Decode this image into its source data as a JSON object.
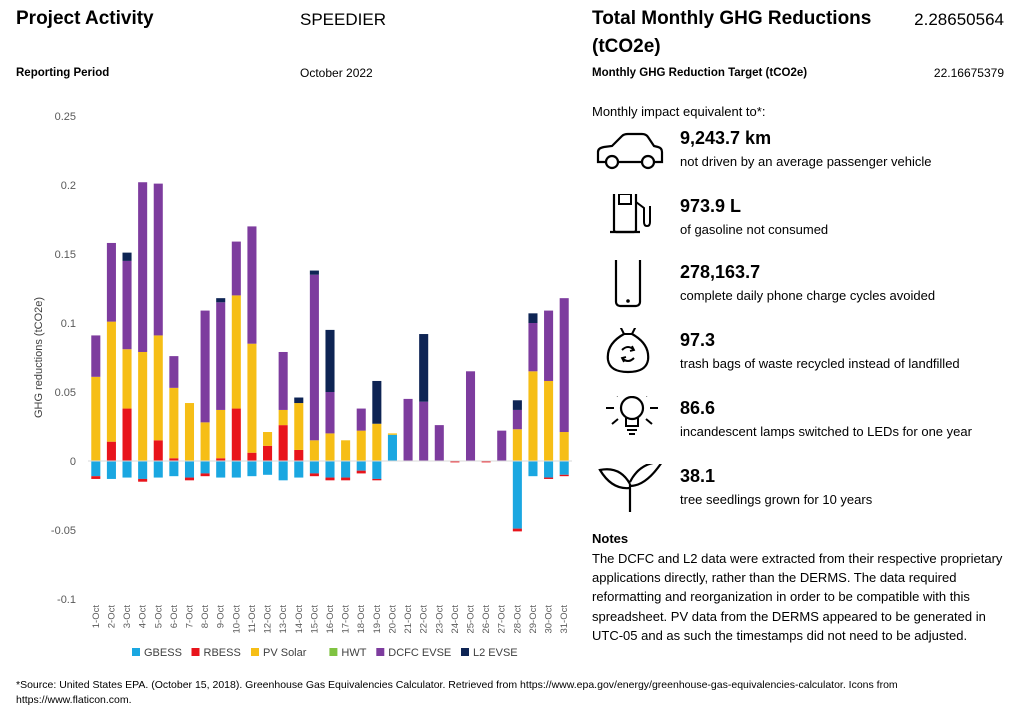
{
  "header": {
    "project_activity_label": "Project Activity",
    "project_name": "SPEEDIER",
    "reporting_period_label": "Reporting Period",
    "reporting_period_value": "October 2022",
    "total_label_line1": "Total Monthly GHG Reductions",
    "total_label_line2": "(tCO2e)",
    "total_value": "2.28650564",
    "target_label": "Monthly GHG Reduction Target (tCO2e)",
    "target_value": "22.16675379"
  },
  "impact": {
    "heading": "Monthly impact equivalent to*:",
    "items": [
      {
        "icon": "car-icon",
        "value": "9,243.7 km",
        "desc": "not driven by an average passenger vehicle"
      },
      {
        "icon": "fuel-pump-icon",
        "value": "973.9 L",
        "desc": "of gasoline not consumed"
      },
      {
        "icon": "phone-icon",
        "value": "278,163.7",
        "desc": "complete daily phone charge cycles avoided"
      },
      {
        "icon": "recycle-bag-icon",
        "value": "97.3",
        "desc": "trash bags of waste recycled instead of landfilled"
      },
      {
        "icon": "lightbulb-icon",
        "value": "86.6",
        "desc": "incandescent lamps switched to LEDs for one year"
      },
      {
        "icon": "seedling-icon",
        "value": "38.1",
        "desc": "tree seedlings grown for 10 years"
      }
    ]
  },
  "notes": {
    "title": "Notes",
    "text": "The DCFC and L2 data were extracted from their respective proprietary applications directly, rather than the DERMS. The data required reformatting and reorganization in order to be compatible with this spreadsheet. PV data from the DERMS appeared to be generated in UTC-05 and as such the timestamps did not need to be adjusted."
  },
  "footer": {
    "source": "*Source: United States EPA. (October 15, 2018). Greenhouse Gas Equivalencies Calculator. Retrieved from https://www.epa.gov/energy/greenhouse-gas-equivalencies-calculator. Icons from https://www.flaticon.com."
  },
  "chart_data": {
    "type": "bar",
    "stacked": true,
    "ylabel": "GHG reductions (tCO2e)",
    "ylim": [
      -0.1,
      0.25
    ],
    "yticks": [
      -0.1,
      -0.05,
      0,
      0.05,
      0.1,
      0.15,
      0.2,
      0.25
    ],
    "ytick_labels": [
      "-0.1",
      "-0.05",
      "0",
      "0.05",
      "0.1",
      "0.15",
      "0.2",
      "0.25"
    ],
    "grid": false,
    "legend_position": "bottom",
    "categories": [
      "1-Oct",
      "2-Oct",
      "3-Oct",
      "4-Oct",
      "5-Oct",
      "6-Oct",
      "7-Oct",
      "8-Oct",
      "9-Oct",
      "10-Oct",
      "11-Oct",
      "12-Oct",
      "13-Oct",
      "14-Oct",
      "15-Oct",
      "16-Oct",
      "17-Oct",
      "18-Oct",
      "19-Oct",
      "20-Oct",
      "21-Oct",
      "22-Oct",
      "23-Oct",
      "24-Oct",
      "25-Oct",
      "26-Oct",
      "27-Oct",
      "28-Oct",
      "29-Oct",
      "30-Oct",
      "31-Oct"
    ],
    "series": [
      {
        "name": "GBESS",
        "color": "#1AA7E1",
        "values": [
          -0.011,
          -0.013,
          -0.012,
          -0.013,
          -0.012,
          -0.011,
          -0.012,
          -0.009,
          -0.012,
          -0.012,
          -0.011,
          -0.01,
          -0.014,
          -0.012,
          -0.009,
          -0.012,
          -0.012,
          -0.007,
          -0.013,
          0.019,
          0,
          0,
          0,
          0,
          0,
          0,
          0,
          -0.049,
          -0.011,
          -0.012,
          -0.01
        ]
      },
      {
        "name": "RBESS",
        "color": "#E8141B",
        "values": [
          -0.002,
          0.014,
          0.038,
          -0.002,
          0.015,
          0.002,
          -0.002,
          -0.002,
          0.002,
          0.038,
          0.006,
          0.011,
          0.026,
          0.008,
          -0.002,
          -0.002,
          -0.002,
          -0.002,
          -0.001,
          0,
          0,
          0,
          0,
          -0.001,
          0,
          -0.001,
          0,
          -0.002,
          0,
          -0.001,
          -0.001
        ]
      },
      {
        "name": "PV Solar",
        "color": "#F6BE16",
        "values": [
          0.061,
          0.087,
          0.043,
          0.079,
          0.076,
          0.051,
          0.042,
          0.028,
          0.035,
          0.082,
          0.079,
          0.01,
          0.011,
          0.034,
          0.015,
          0.02,
          0.015,
          0.022,
          0.027,
          0.001,
          0,
          0,
          0,
          0,
          0,
          0,
          0,
          0.023,
          0.065,
          0.058,
          0.021
        ]
      },
      {
        "name": "HWT",
        "color": "#80C342",
        "values": [
          0,
          0,
          0,
          0,
          0,
          0,
          0,
          0,
          0,
          0,
          0,
          0,
          0,
          0,
          0,
          0,
          0,
          0,
          0,
          0,
          0,
          0,
          0,
          0,
          0,
          0,
          0,
          0,
          0,
          0,
          0
        ]
      },
      {
        "name": "DCFC EVSE",
        "color": "#7D3C9E",
        "values": [
          0.03,
          0.057,
          0.064,
          0.123,
          0.11,
          0.023,
          0,
          0.081,
          0.078,
          0.039,
          0.085,
          0,
          0.042,
          0,
          0.12,
          0.03,
          0,
          0.016,
          0,
          0,
          0.045,
          0.043,
          0.026,
          0,
          0.065,
          0,
          0.022,
          0.014,
          0.035,
          0.051,
          0.097
        ]
      },
      {
        "name": "L2 EVSE",
        "color": "#0E2454",
        "values": [
          0,
          0,
          0.006,
          0,
          0,
          0,
          0,
          0,
          0.003,
          0,
          0,
          0,
          0,
          0.004,
          0.003,
          0.045,
          0,
          0,
          0.031,
          0,
          0,
          0.049,
          0,
          0,
          0,
          0,
          0,
          0.007,
          0.007,
          0,
          0
        ]
      }
    ]
  }
}
